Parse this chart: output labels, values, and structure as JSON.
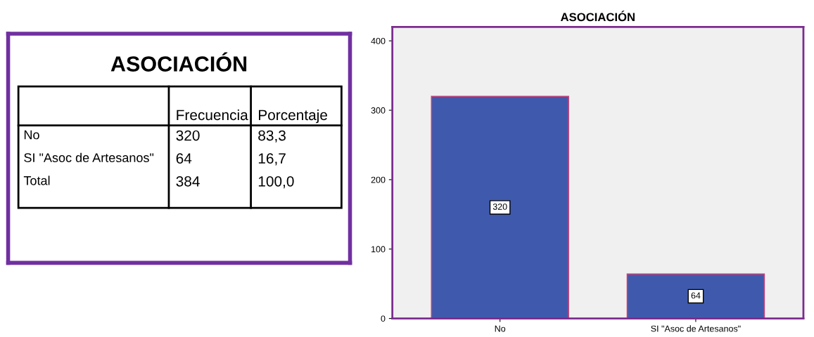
{
  "chart_data": [
    {
      "type": "other",
      "title": "ASOCIACIÓN",
      "annotations": [
        "Frecuencia",
        "Porcentaje",
        "No",
        "320",
        "83,3",
        "SI \"Asoc de Artesanos\"",
        "64",
        "16,7",
        "Total",
        "384",
        "100,0"
      ]
    },
    {
      "type": "bar",
      "title": "ASOCIACIÓN",
      "categories": [
        "No",
        "SI \"Asoc de Artesanos\""
      ],
      "values": [
        320,
        64
      ],
      "color": "#3f5aad",
      "ylim": [
        0,
        420
      ],
      "yticks": [
        0,
        100,
        200,
        300,
        400
      ],
      "grid": false,
      "data_labels": true
    }
  ]
}
